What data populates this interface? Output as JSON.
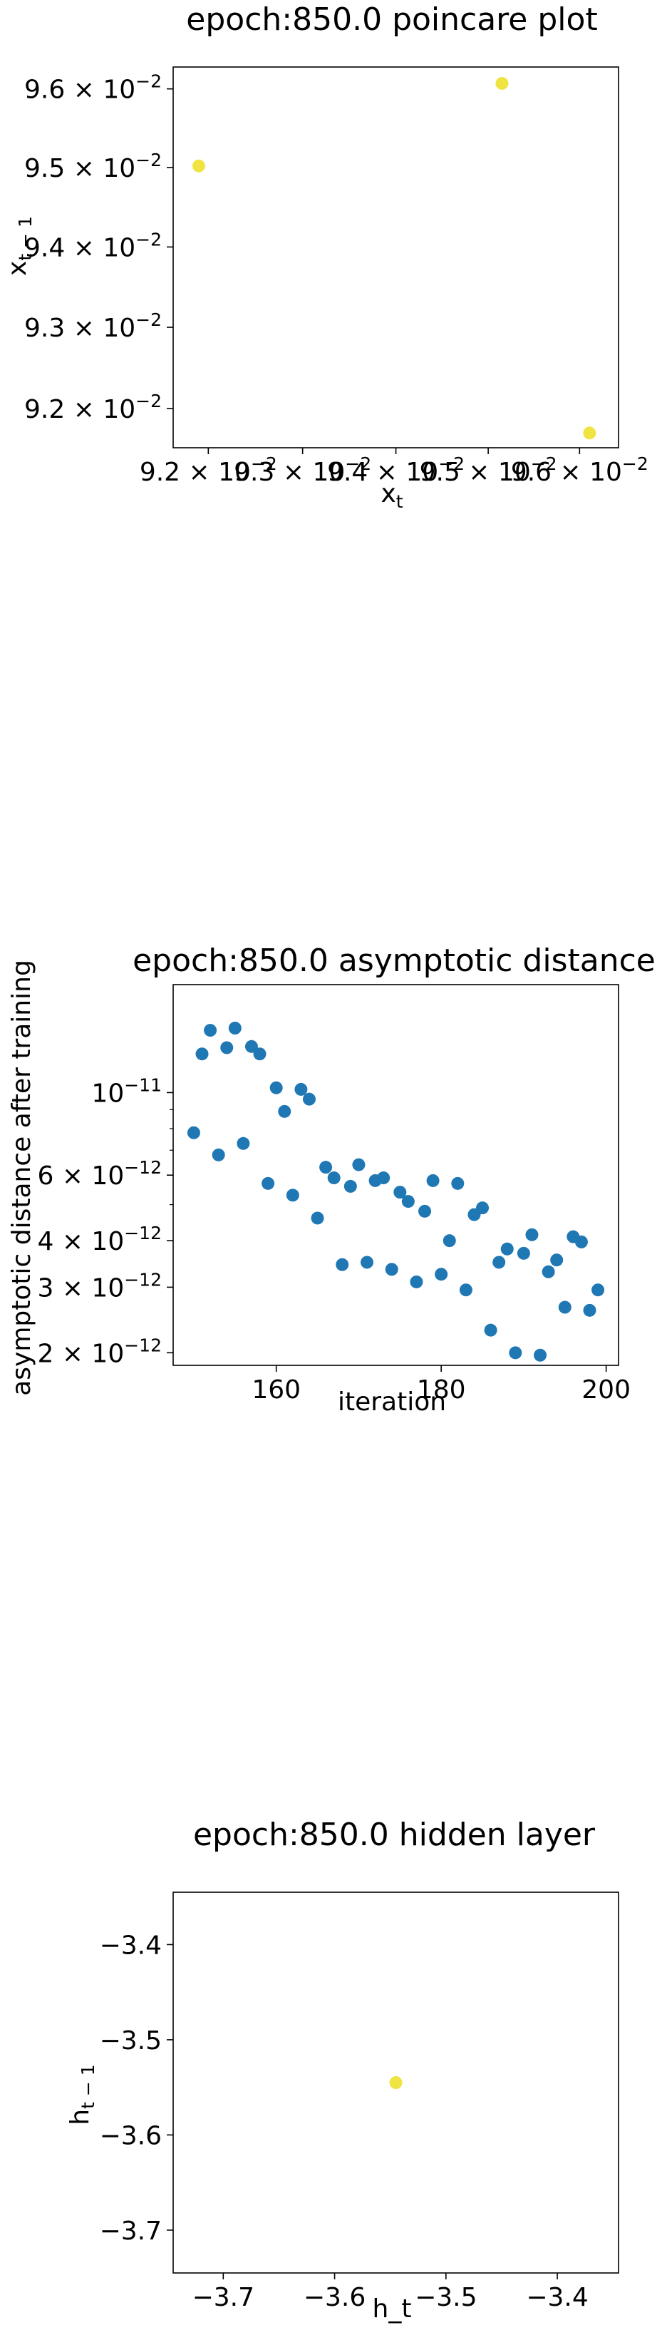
{
  "chart_data": [
    {
      "type": "scatter",
      "title": "epoch:850.0 poincare plot",
      "xlabel": "x_t",
      "ylabel": "x_{t-1}",
      "xscale": "log",
      "yscale": "log",
      "xlim": [
        0.09163,
        0.09643
      ],
      "ylim": [
        0.09152,
        0.09628
      ],
      "xticks": [
        0.092,
        0.093,
        0.094,
        0.095,
        0.096
      ],
      "xtick_labels": [
        {
          "mant": "9.2",
          "exp": "−2"
        },
        {
          "mant": "9.3",
          "exp": "−2"
        },
        {
          "mant": "9.4",
          "exp": "−2"
        },
        {
          "mant": "9.5",
          "exp": "−2"
        },
        {
          "mant": "9.6",
          "exp": "−2"
        }
      ],
      "yticks": [
        0.092,
        0.093,
        0.094,
        0.095,
        0.096
      ],
      "ytick_labels": [
        {
          "mant": "9.2",
          "exp": "−2"
        },
        {
          "mant": "9.3",
          "exp": "−2"
        },
        {
          "mant": "9.4",
          "exp": "−2"
        },
        {
          "mant": "9.5",
          "exp": "−2"
        },
        {
          "mant": "9.6",
          "exp": "−2"
        }
      ],
      "color": "#f0e442",
      "points": [
        {
          "x": 0.0919,
          "y": 0.09502
        },
        {
          "x": 0.09515,
          "y": 0.09607
        },
        {
          "x": 0.09611,
          "y": 0.0917
        }
      ]
    },
    {
      "type": "scatter",
      "title": "epoch:850.0 asymptotic distance",
      "xlabel": "iteration",
      "ylabel": "asymptotic distance after training",
      "yscale": "log",
      "xlim": [
        147.5,
        201.5
      ],
      "ylim": [
        1.85e-12,
        1.95e-11
      ],
      "xticks": [
        160,
        180,
        200
      ],
      "xtick_labels": [
        "160",
        "180",
        "200"
      ],
      "yticks": [
        2e-12,
        3e-12,
        4e-12,
        6e-12,
        1e-11
      ],
      "ytick_labels": [
        {
          "mant": "2",
          "exp": "−12"
        },
        {
          "mant": "3",
          "exp": "−12"
        },
        {
          "mant": "4",
          "exp": "−12"
        },
        {
          "mant": "6",
          "exp": "−12"
        },
        {
          "mant": "",
          "exp": "−11"
        }
      ],
      "color": "#1f77b4",
      "points": [
        {
          "x": 150,
          "y": 7.8e-12
        },
        {
          "x": 151,
          "y": 1.27e-11
        },
        {
          "x": 152,
          "y": 1.47e-11
        },
        {
          "x": 153,
          "y": 6.8e-12
        },
        {
          "x": 154,
          "y": 1.32e-11
        },
        {
          "x": 155,
          "y": 1.49e-11
        },
        {
          "x": 156,
          "y": 7.3e-12
        },
        {
          "x": 157,
          "y": 1.33e-11
        },
        {
          "x": 158,
          "y": 1.27e-11
        },
        {
          "x": 159,
          "y": 5.7e-12
        },
        {
          "x": 160,
          "y": 1.03e-11
        },
        {
          "x": 161,
          "y": 8.9e-12
        },
        {
          "x": 162,
          "y": 5.3e-12
        },
        {
          "x": 163,
          "y": 1.02e-11
        },
        {
          "x": 164,
          "y": 9.6e-12
        },
        {
          "x": 165,
          "y": 4.6e-12
        },
        {
          "x": 166,
          "y": 6.3e-12
        },
        {
          "x": 167,
          "y": 5.9e-12
        },
        {
          "x": 168,
          "y": 3.45e-12
        },
        {
          "x": 169,
          "y": 5.6e-12
        },
        {
          "x": 170,
          "y": 6.4e-12
        },
        {
          "x": 171,
          "y": 3.5e-12
        },
        {
          "x": 172,
          "y": 5.8e-12
        },
        {
          "x": 173,
          "y": 5.9e-12
        },
        {
          "x": 174,
          "y": 3.35e-12
        },
        {
          "x": 175,
          "y": 5.4e-12
        },
        {
          "x": 176,
          "y": 5.1e-12
        },
        {
          "x": 177,
          "y": 3.1e-12
        },
        {
          "x": 178,
          "y": 4.8e-12
        },
        {
          "x": 179,
          "y": 5.8e-12
        },
        {
          "x": 180,
          "y": 3.25e-12
        },
        {
          "x": 181,
          "y": 4e-12
        },
        {
          "x": 182,
          "y": 5.7e-12
        },
        {
          "x": 183,
          "y": 2.95e-12
        },
        {
          "x": 184,
          "y": 4.7e-12
        },
        {
          "x": 185,
          "y": 4.9e-12
        },
        {
          "x": 186,
          "y": 2.3e-12
        },
        {
          "x": 187,
          "y": 3.5e-12
        },
        {
          "x": 188,
          "y": 3.8e-12
        },
        {
          "x": 189,
          "y": 2e-12
        },
        {
          "x": 190,
          "y": 3.7e-12
        },
        {
          "x": 191,
          "y": 4.15e-12
        },
        {
          "x": 192,
          "y": 1.97e-12
        },
        {
          "x": 193,
          "y": 3.3e-12
        },
        {
          "x": 194,
          "y": 3.55e-12
        },
        {
          "x": 195,
          "y": 2.65e-12
        },
        {
          "x": 196,
          "y": 4.1e-12
        },
        {
          "x": 197,
          "y": 3.97e-12
        },
        {
          "x": 198,
          "y": 2.6e-12
        },
        {
          "x": 199,
          "y": 2.95e-12
        }
      ]
    },
    {
      "type": "scatter",
      "title": "epoch:850.0 hidden layer",
      "xlabel": "h_t",
      "ylabel": "h_{t-1}",
      "xlim": [
        -3.745,
        -3.345
      ],
      "ylim": [
        -3.745,
        -3.345
      ],
      "xticks": [
        -3.7,
        -3.6,
        -3.5,
        -3.4
      ],
      "xtick_labels": [
        "−3.7",
        "−3.6",
        "−3.5",
        "−3.4"
      ],
      "yticks": [
        -3.7,
        -3.6,
        -3.5,
        -3.4
      ],
      "ytick_labels": [
        "−3.7",
        "−3.6",
        "−3.5",
        "−3.4"
      ],
      "color": "#f0e442",
      "points": [
        {
          "x": -3.545,
          "y": -3.545
        }
      ]
    }
  ]
}
